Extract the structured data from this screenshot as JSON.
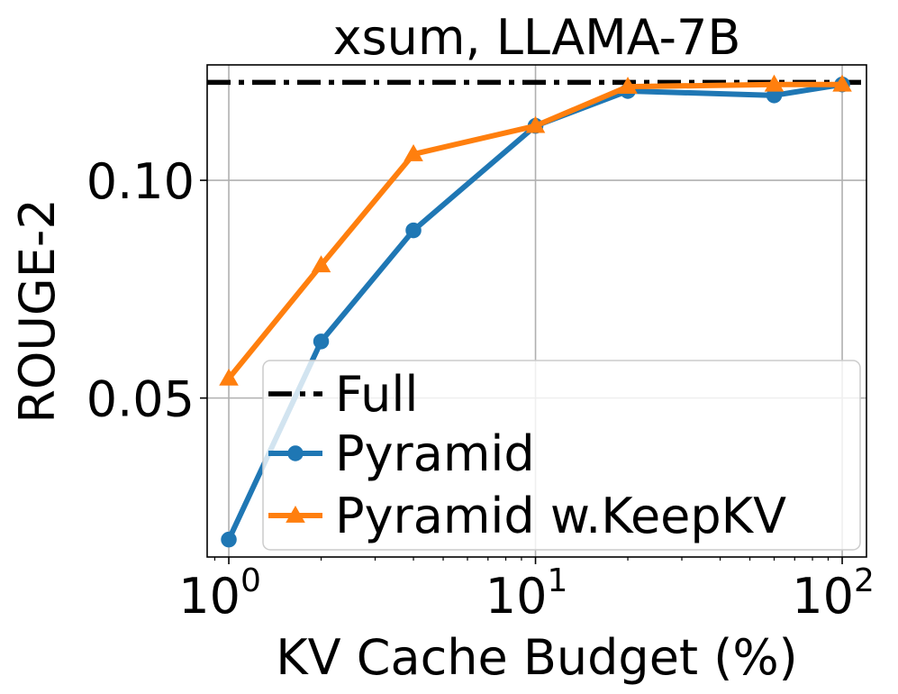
{
  "chart_data": {
    "type": "line",
    "title": "xsum, LLAMA-7B",
    "xlabel": "KV Cache Budget (%)",
    "ylabel": "ROUGE-2",
    "xscale": "log",
    "xlim": [
      0.85,
      120
    ],
    "ylim": [
      0.0135,
      0.1265
    ],
    "grid": true,
    "x_ticks": [
      {
        "value": 1,
        "base": "10",
        "exp": "0"
      },
      {
        "value": 10,
        "base": "10",
        "exp": "1"
      },
      {
        "value": 100,
        "base": "10",
        "exp": "2"
      }
    ],
    "y_ticks": [
      {
        "value": 0.05,
        "label": "0.05"
      },
      {
        "value": 0.1,
        "label": "0.10"
      }
    ],
    "reference_line": {
      "name": "Full",
      "value": 0.1225,
      "color": "#000000",
      "style": "dash-dot"
    },
    "series": [
      {
        "name": "Pyramid",
        "color": "#1f77b4",
        "marker": "circle",
        "x": [
          1,
          2,
          4,
          10,
          20,
          60,
          100
        ],
        "y": [
          0.0175,
          0.063,
          0.0885,
          0.1125,
          0.1205,
          0.1195,
          0.122
        ]
      },
      {
        "name": "Pyramid w.KeepKV",
        "color": "#ff7f0e",
        "marker": "triangle",
        "x": [
          1,
          2,
          4,
          10,
          20,
          60,
          100
        ],
        "y": [
          0.0545,
          0.0805,
          0.106,
          0.1125,
          0.1215,
          0.122,
          0.122
        ]
      }
    ],
    "legend": {
      "position": "lower-right",
      "entries": [
        "Full",
        "Pyramid",
        "Pyramid w.KeepKV"
      ]
    }
  }
}
